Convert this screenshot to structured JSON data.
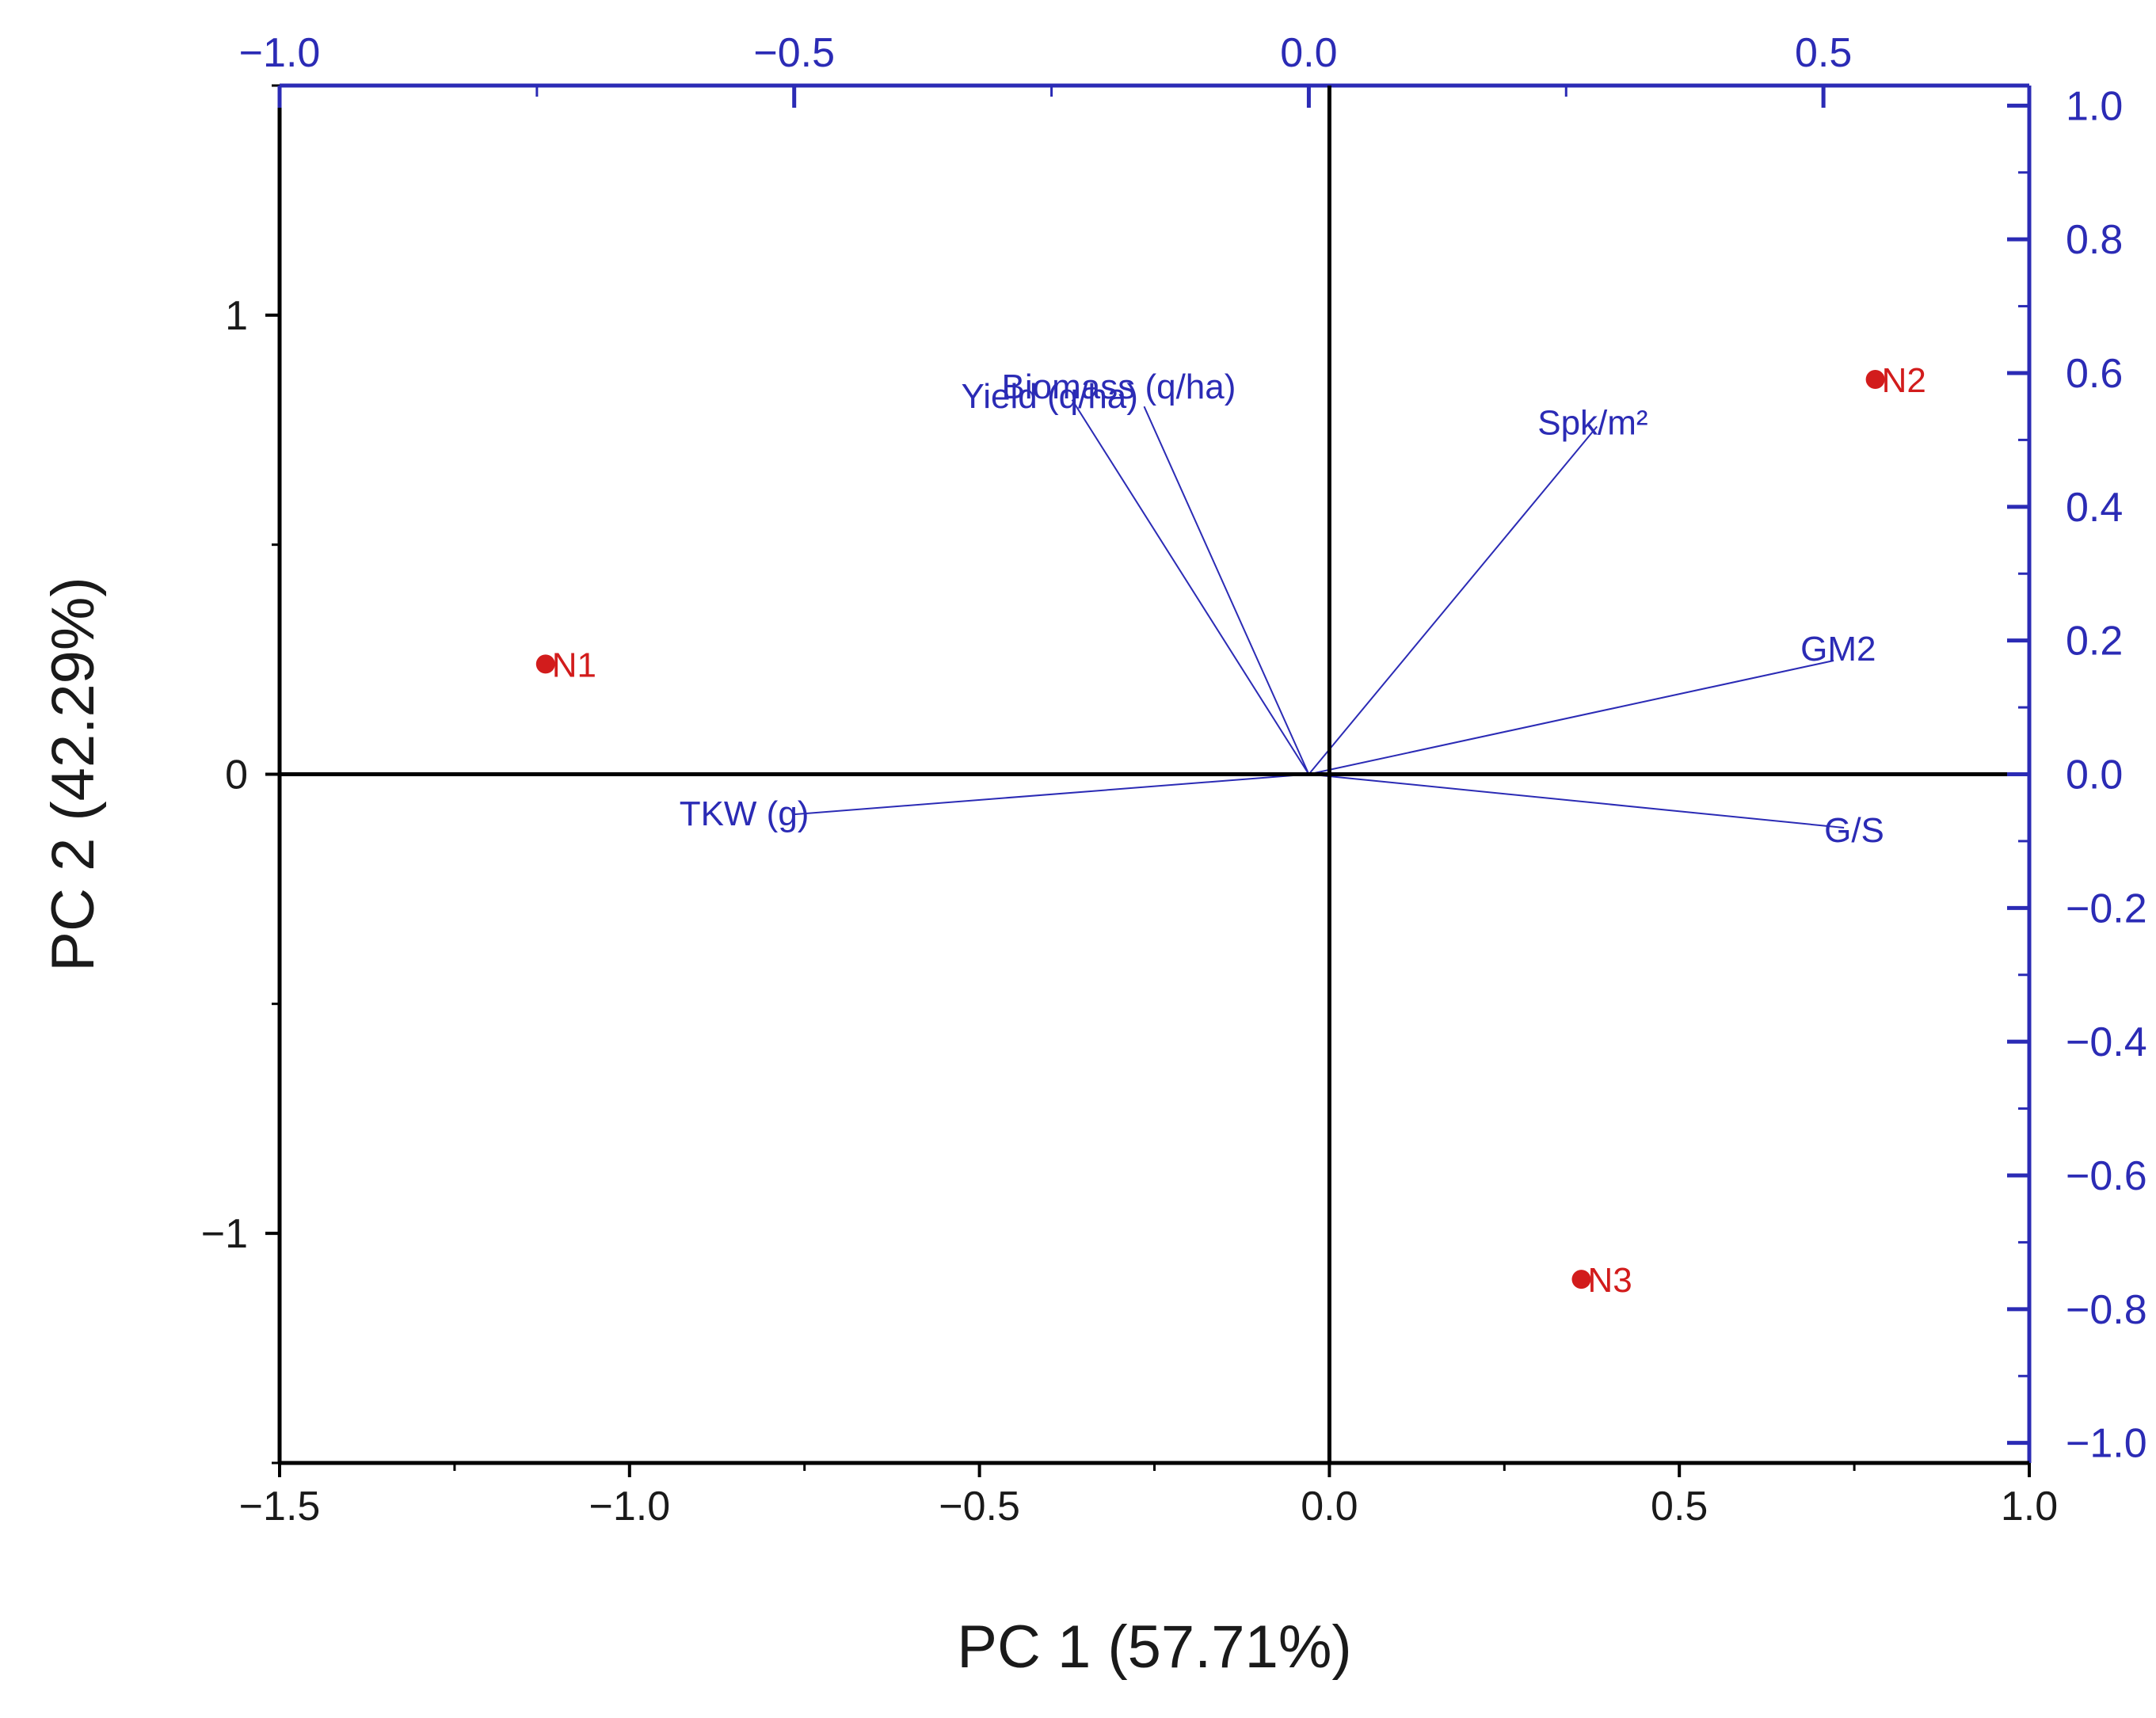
{
  "chart_data": {
    "type": "scatter",
    "subtype": "pca-biplot",
    "xlabel": "PC 1 (57.71%)",
    "ylabel": "PC 2 (42.29%)",
    "xlim": [
      -1.5,
      1.0
    ],
    "ylim": [
      -1.5,
      1.5
    ],
    "secondary_xlim": [
      -1.0,
      0.7
    ],
    "secondary_ylim": [
      -1.03,
      1.03
    ],
    "x_ticks": [
      "−1.5",
      "−1.0",
      "−0.5",
      "0.0",
      "0.5",
      "1.0"
    ],
    "y_ticks": [
      "−1",
      "0",
      "1"
    ],
    "top_ticks": [
      "−1.0",
      "−0.5",
      "0.0",
      "0.5"
    ],
    "right_ticks": [
      "1.0",
      "0.8",
      "0.6",
      "0.4",
      "0.2",
      "0.0",
      "−0.2",
      "−0.4",
      "−0.6",
      "−0.8",
      "−1.0"
    ],
    "observations": [
      {
        "label": "N1",
        "x": -1.12,
        "y": 0.24
      },
      {
        "label": "N2",
        "x": 0.78,
        "y": 0.86
      },
      {
        "label": "N3",
        "x": 0.36,
        "y": -1.1
      }
    ],
    "loadings": [
      {
        "label": "Biomass (q/ha)",
        "x": -0.16,
        "y": 0.55
      },
      {
        "label": "Yield (q/ha)",
        "x": -0.23,
        "y": 0.56
      },
      {
        "label": "Spk/m²",
        "x": 0.28,
        "y": 0.52
      },
      {
        "label": "GM2",
        "x": 0.51,
        "y": 0.17
      },
      {
        "label": "G/S",
        "x": 0.52,
        "y": -0.08
      },
      {
        "label": "TKW (g)",
        "x": -0.5,
        "y": -0.06
      }
    ],
    "grid": false,
    "colors": {
      "observations": "#d21c1c",
      "loadings": "#2b2bb5",
      "axes": "#000000",
      "secondary_axes": "#2b2bb5"
    }
  }
}
